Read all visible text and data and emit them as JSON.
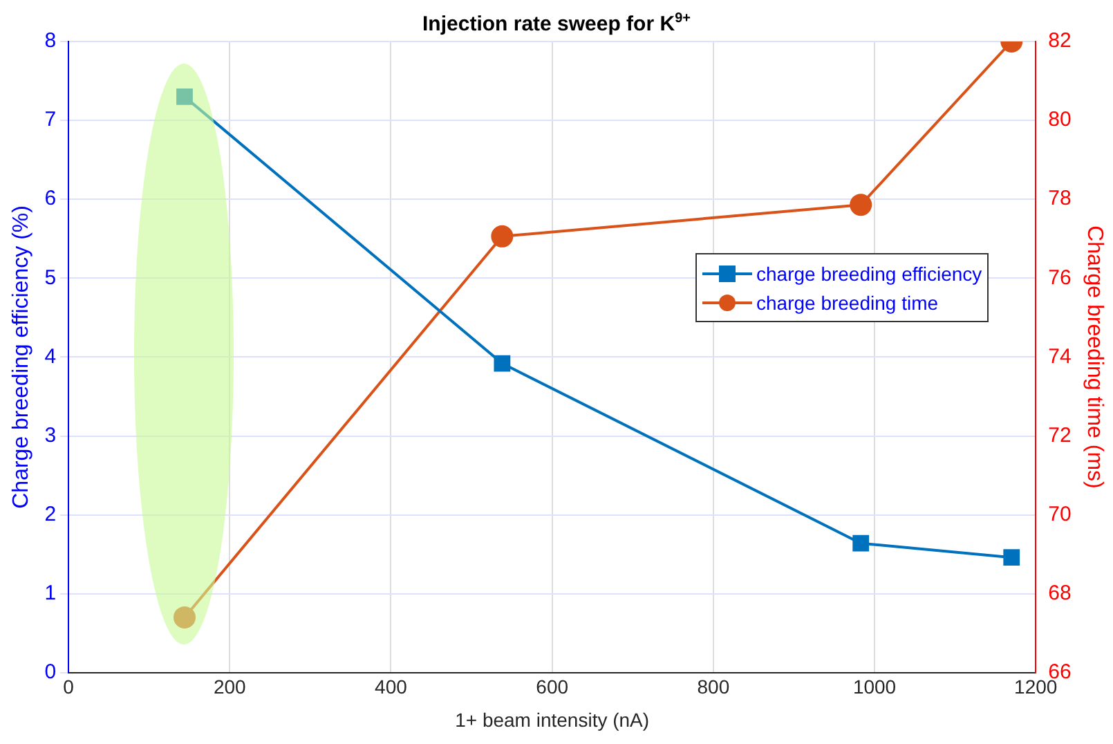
{
  "chart_data": {
    "type": "line",
    "title": "Injection rate sweep for K$^{9+}$",
    "xlabel": "1+ beam intensity (nA)",
    "ylabel": "Charge breeding efficiency (%)",
    "y2label": "Charge breeding time (ms)",
    "x": [
      144,
      538,
      983,
      1170
    ],
    "series": [
      {
        "name": "charge breeding efficiency",
        "color": "#0072bd",
        "values": [
          7.3,
          3.92,
          1.64,
          1.46
        ],
        "marker": "square"
      },
      {
        "name": "charge breeding time",
        "color": "#d95319",
        "values": [
          67.4,
          77.06,
          77.86,
          82.0
        ],
        "marker": "circle",
        "axis": "y2"
      }
    ],
    "xlim": [
      0,
      1200
    ],
    "xticks": [
      0,
      200,
      400,
      600,
      800,
      1000,
      1200
    ],
    "ylim": [
      0,
      8
    ],
    "yticks": [
      0,
      1,
      2,
      3,
      4,
      5,
      6,
      7,
      8
    ],
    "y2lim": [
      66,
      82
    ],
    "y2ticks": [
      66,
      68,
      70,
      72,
      74,
      76,
      78,
      80,
      82
    ],
    "grid": true,
    "legend": "right",
    "line_style": "solid"
  }
}
